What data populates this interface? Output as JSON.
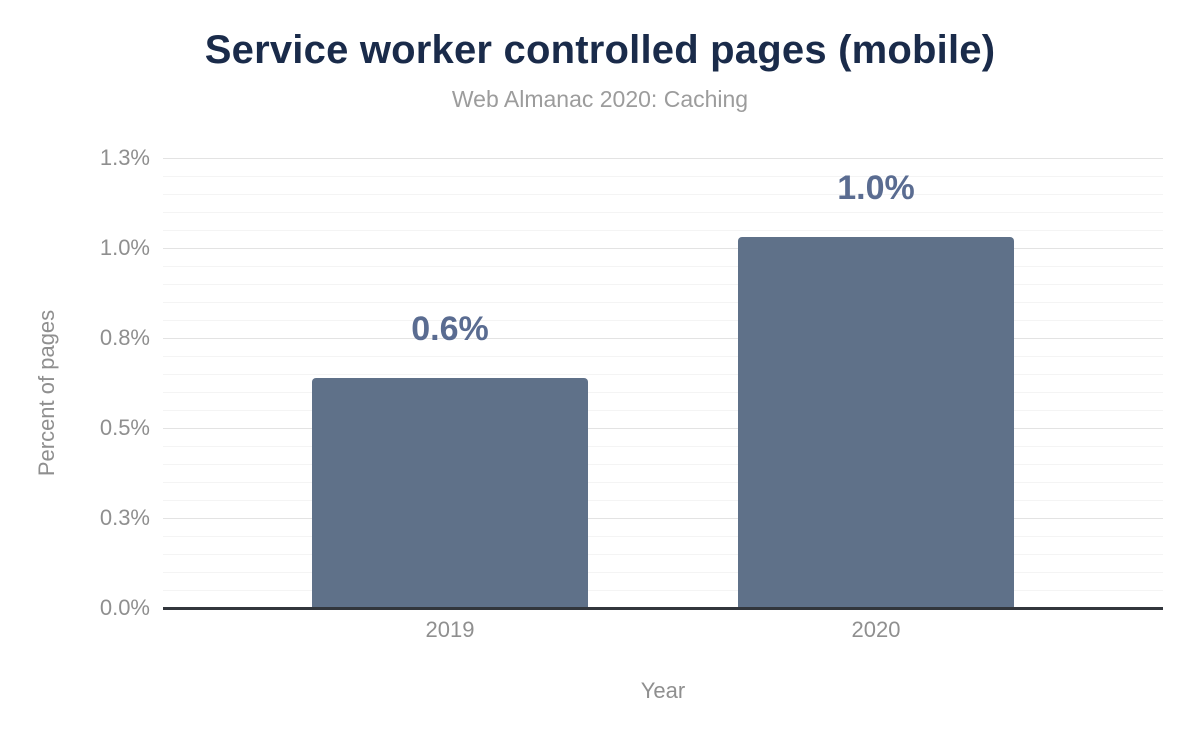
{
  "header": {
    "title": "Service worker controlled pages (mobile)",
    "subtitle": "Web Almanac 2020: Caching"
  },
  "colors": {
    "title": "#1a2b4a",
    "subtitle": "#9c9c9c",
    "axis_text": "#8f8f8f",
    "axis_line": "#32363c",
    "gridline_major": "#e3e3e3",
    "gridline_minor": "#f4f4f4",
    "bar": "#5f7189",
    "value_label": "#5a6c91"
  },
  "chart_data": {
    "type": "bar",
    "categories": [
      "2019",
      "2020"
    ],
    "values": [
      0.64,
      1.03
    ],
    "value_labels": [
      "0.6%",
      "1.0%"
    ],
    "title": "Service worker controlled pages (mobile)",
    "subtitle": "Web Almanac 2020: Caching",
    "xlabel": "Year",
    "ylabel": "Percent of pages",
    "ylim": [
      0,
      1.25
    ],
    "yticks": [
      {
        "value": 0,
        "label": "0.0%"
      },
      {
        "value": 0.25,
        "label": "0.3%"
      },
      {
        "value": 0.5,
        "label": "0.5%"
      },
      {
        "value": 0.75,
        "label": "0.8%"
      },
      {
        "value": 1.0,
        "label": "1.0%"
      },
      {
        "value": 1.25,
        "label": "1.3%"
      }
    ],
    "minor_tick_step": 0.05,
    "grid": true,
    "legend": false
  }
}
